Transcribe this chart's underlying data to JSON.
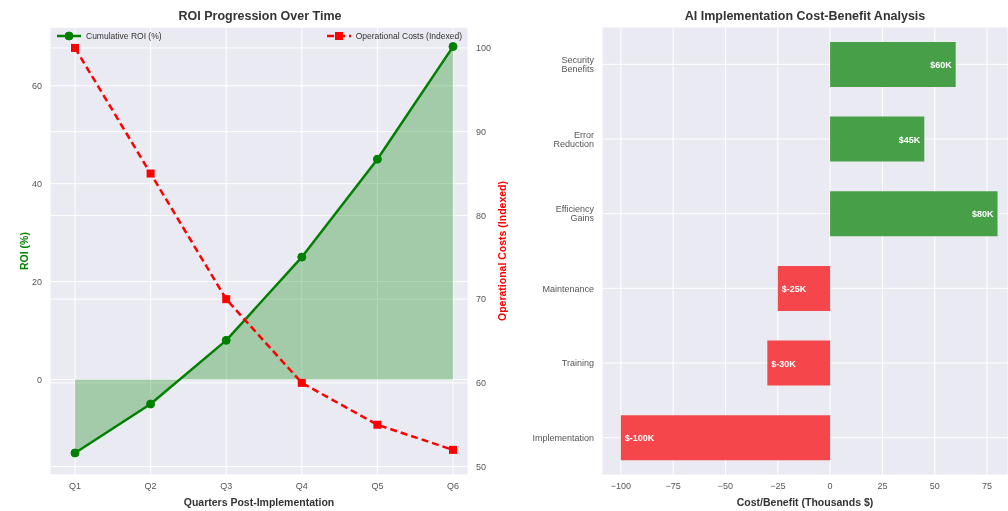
{
  "chart_data": [
    {
      "type": "line",
      "title": "ROI Progression Over Time",
      "xlabel": "Quarters Post-Implementation",
      "ylabel": "ROI (%)",
      "y2label": "Operational Costs (Indexed)",
      "categories": [
        "Q1",
        "Q2",
        "Q3",
        "Q4",
        "Q5",
        "Q6"
      ],
      "series": [
        {
          "name": "Cumulative ROI (%)",
          "type": "area",
          "color": "#008000",
          "values": [
            -15,
            -5,
            8,
            25,
            45,
            68
          ],
          "marker": "circle",
          "line_style": "solid"
        },
        {
          "name": "Operational Costs (Indexed)",
          "type": "line",
          "axis": "y2",
          "color": "#ff0000",
          "values": [
            100,
            85,
            70,
            60,
            55,
            52
          ],
          "marker": "square",
          "line_style": "dashed"
        }
      ],
      "ylim": [
        -19.5,
        72
      ],
      "yticks": [
        0,
        20,
        40,
        60
      ],
      "y2lim": [
        49,
        102.5
      ],
      "y2ticks": [
        50,
        60,
        70,
        80,
        90,
        100
      ],
      "grid": true,
      "legend": "top"
    },
    {
      "type": "bar",
      "orientation": "horizontal",
      "title": "AI Implementation Cost-Benefit Analysis",
      "xlabel": "Cost/Benefit (Thousands $)",
      "categories": [
        "Security Benefits",
        "Error Reduction",
        "Efficiency Gains",
        "Maintenance",
        "Training",
        "Implementation"
      ],
      "values": [
        60,
        45,
        80,
        -25,
        -30,
        -100
      ],
      "colors": [
        "#47a047",
        "#47a047",
        "#47a047",
        "#f5474b",
        "#f5474b",
        "#f5474b"
      ],
      "value_labels": [
        "$60K",
        "$45K",
        "$80K",
        "$-25K",
        "$-30K",
        "$-100K"
      ],
      "xlim": [
        -109,
        85
      ],
      "xticks": [
        {
          "value": -100,
          "label": "−100"
        },
        {
          "value": -75,
          "label": "−75"
        },
        {
          "value": -50,
          "label": "−50"
        },
        {
          "value": -25,
          "label": "−25"
        },
        0,
        25,
        50,
        75
      ],
      "grid": true
    }
  ]
}
